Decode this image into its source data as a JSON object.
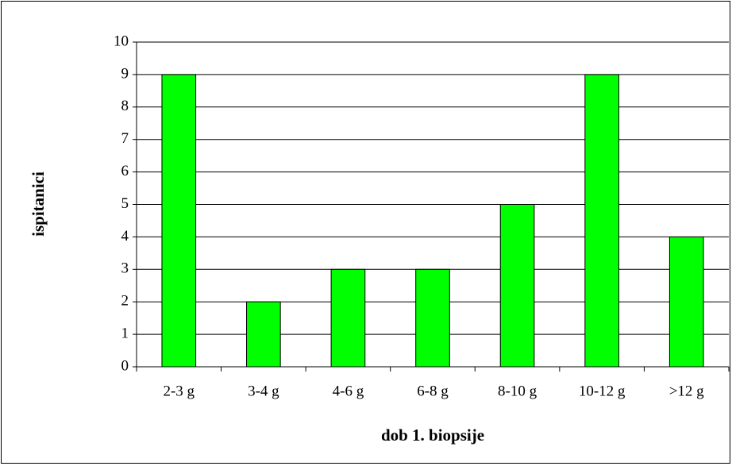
{
  "chart_data": {
    "type": "bar",
    "categories": [
      "2-3 g",
      "3-4 g",
      "4-6 g",
      "6-8 g",
      "8-10 g",
      "10-12 g",
      ">12 g"
    ],
    "values": [
      9,
      2,
      3,
      3,
      5,
      9,
      4
    ],
    "color": "#00ff00",
    "x_label": "dob 1. biopsije",
    "y_label": "ispitanici",
    "ylim": [
      0,
      10
    ],
    "yticks": [
      0,
      1,
      2,
      3,
      4,
      5,
      6,
      7,
      8,
      9,
      10
    ],
    "grid": true
  }
}
